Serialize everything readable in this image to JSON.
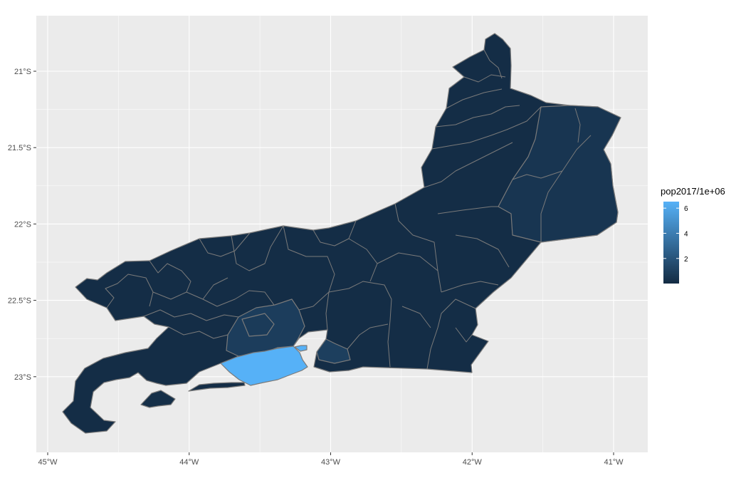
{
  "chart_data": {
    "type": "choropleth-map",
    "title": "",
    "x_axis": {
      "label": "",
      "ticks": [
        "45°W",
        "44°W",
        "43°W",
        "42°W",
        "41°W"
      ],
      "tick_values": [
        -45,
        -44,
        -43,
        -42,
        -41
      ],
      "range": [
        -45.08,
        -40.76
      ]
    },
    "y_axis": {
      "label": "",
      "ticks": [
        "21°S",
        "21.5°S",
        "22°S",
        "22.5°S",
        "23°S"
      ],
      "tick_values": [
        -21,
        -21.5,
        -22,
        -22.5,
        -23
      ],
      "range": [
        -23.49,
        -20.63
      ]
    },
    "grid": true,
    "legend": {
      "title": "pop2017/1e+06",
      "position": "right",
      "type": "colorbar",
      "labels": [
        "6",
        "4",
        "2"
      ],
      "label_values": [
        6,
        4,
        2
      ],
      "range": [
        0.005,
        6.52
      ],
      "color_low": "#132B43",
      "color_high": "#56B1F7"
    },
    "regions": [
      {
        "role": "state-interior",
        "value": 0.1
      },
      {
        "role": "north-east-region",
        "value": 0.5
      },
      {
        "role": "baixada-region",
        "value": 0.9
      },
      {
        "role": "baixada-inner",
        "value": 0.8
      },
      {
        "role": "niteroi-sao-goncalo",
        "value": 1.0
      },
      {
        "role": "rio-de-janeiro-city",
        "value": 6.52
      },
      {
        "role": "paqueta-island",
        "value": 6.52
      },
      {
        "role": "ilha-grande",
        "value": 0.2
      },
      {
        "role": "restinga-marambaia",
        "value": 0.1
      }
    ]
  },
  "colors": {
    "panel_background": "#EBEBEB",
    "grid_major": "#FFFFFF",
    "border": "#7A7A7A",
    "axis_tick": "#333333"
  }
}
